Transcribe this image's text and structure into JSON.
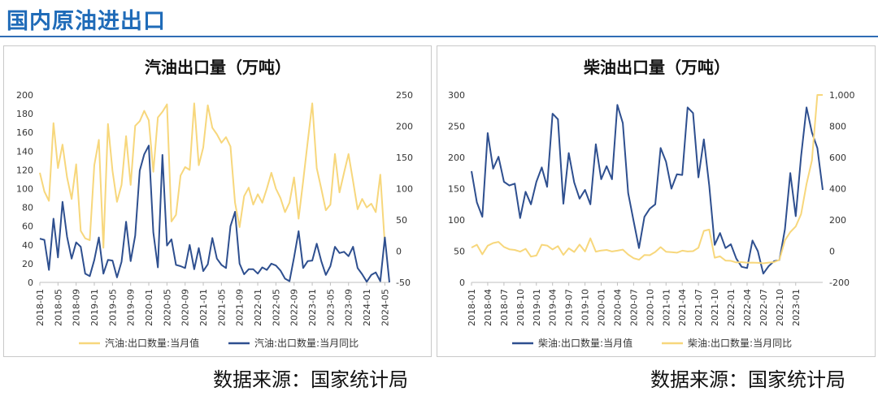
{
  "page": {
    "title": "国内原油进出口"
  },
  "sources": {
    "left": "数据来源：国家统计局",
    "right": "数据来源：国家统计局"
  },
  "colors": {
    "blue": "#2e4f8f",
    "yellow": "#f7d77c",
    "axis": "#bfbfbf",
    "text": "#333333"
  },
  "chart_data": [
    {
      "type": "line",
      "title": "汽油出口量（万吨）",
      "x_start": "2018-01",
      "x_tick_labels": [
        "2018-01",
        "2018-05",
        "2018-09",
        "2019-01",
        "2019-05",
        "2019-09",
        "2020-01",
        "2020-05",
        "2020-09",
        "2021-01",
        "2021-05",
        "2021-09",
        "2022-01",
        "2022-05",
        "2022-09",
        "2023-01",
        "2023-05",
        "2023-09",
        "2024-01",
        "2024-05"
      ],
      "left_axis": {
        "ylim": [
          0,
          200
        ],
        "ticks": [
          0,
          20,
          40,
          60,
          80,
          100,
          120,
          140,
          160,
          180,
          200
        ]
      },
      "right_axis": {
        "ylim": [
          -50,
          250
        ],
        "ticks": [
          -50,
          0,
          50,
          100,
          150,
          200,
          250
        ]
      },
      "legend": {
        "placement": "bottom"
      },
      "series": [
        {
          "name": "汽油:出口数量:当月值",
          "axis": "left",
          "color": "#f7d77c",
          "values": [
            117,
            97,
            87,
            170,
            122,
            147,
            112,
            89,
            126,
            55,
            47,
            45,
            125,
            152,
            37,
            169,
            119,
            86,
            104,
            156,
            104,
            167,
            172,
            183,
            173,
            118,
            176,
            182,
            190,
            65,
            72,
            114,
            123,
            120,
            191,
            125,
            144,
            189,
            165,
            158,
            149,
            155,
            145,
            85,
            59,
            92,
            101,
            83,
            94,
            85,
            100,
            117,
            100,
            90,
            75,
            85,
            112,
            68,
            108,
            150,
            191,
            122,
            100,
            77,
            83,
            137,
            96,
            117,
            137,
            108,
            78,
            89,
            80,
            84,
            75,
            115,
            40
          ]
        },
        {
          "name": "汽油:出口数量:当月同比",
          "axis": "right",
          "color": "#2e4f8f",
          "values": [
            20,
            18,
            -30,
            52,
            -10,
            79,
            23,
            -12,
            14,
            7,
            -36,
            -40,
            -14,
            22,
            -36,
            -14,
            -15,
            -42,
            -17,
            47,
            -16,
            25,
            129,
            155,
            169,
            30,
            -26,
            154,
            9,
            19,
            -22,
            -24,
            -27,
            10,
            -29,
            5,
            -32,
            -21,
            21,
            -12,
            -22,
            -27,
            40,
            63,
            -20,
            -37,
            -29,
            -29,
            -36,
            -26,
            -30,
            -20,
            -23,
            -31,
            -44,
            -48,
            -10,
            32,
            -27,
            -16,
            -15,
            12,
            -16,
            -38,
            -24,
            7,
            -3,
            -1,
            -8,
            7,
            -27,
            -37,
            -49,
            -38,
            -34,
            -48,
            22,
            -53
          ]
        }
      ]
    },
    {
      "type": "line",
      "title": "柴油出口量（万吨）",
      "x_start": "2018-01",
      "x_tick_labels": [
        "2018-01",
        "2018-04",
        "2018-07",
        "2018-10",
        "2019-01",
        "2019-04",
        "2019-07",
        "2019-10",
        "2020-01",
        "2020-04",
        "2020-07",
        "2020-10",
        "2021-01",
        "2021-04",
        "2021-07",
        "2021-10",
        "2022-01",
        "2022-04",
        "2022-07",
        "2022-10",
        "2023-01"
      ],
      "left_axis": {
        "ylim": [
          0,
          300
        ],
        "ticks": [
          0,
          50,
          100,
          150,
          200,
          250,
          300
        ]
      },
      "right_axis": {
        "ylim": [
          -200,
          1000
        ],
        "ticks": [
          -200,
          0,
          200,
          400,
          600,
          800,
          1000
        ],
        "tick_labels": [
          "-200",
          "0",
          "200",
          "400",
          "600",
          "800",
          "1,000"
        ]
      },
      "legend": {
        "placement": "bottom"
      },
      "series": [
        {
          "name": "柴油:出口数量:当月值",
          "axis": "left",
          "color": "#2e4f8f",
          "values": [
            178,
            128,
            105,
            239,
            182,
            201,
            161,
            155,
            158,
            103,
            145,
            125,
            161,
            184,
            153,
            270,
            261,
            126,
            207,
            160,
            134,
            148,
            125,
            221,
            165,
            186,
            165,
            284,
            255,
            143,
            98,
            55,
            105,
            118,
            125,
            215,
            193,
            150,
            173,
            172,
            280,
            271,
            168,
            229,
            155,
            60,
            79,
            55,
            61,
            38,
            25,
            23,
            67,
            50,
            14,
            26,
            34,
            36,
            85,
            175,
            106,
            202,
            280,
            240,
            215,
            148
          ]
        },
        {
          "name": "柴油:出口数量:当月同比",
          "axis": "right",
          "color": "#f7d77c",
          "values": [
            23,
            41,
            -20,
            35,
            52,
            59,
            27,
            12,
            8,
            -3,
            15,
            -35,
            -28,
            41,
            36,
            11,
            32,
            -24,
            18,
            -5,
            42,
            -2,
            82,
            -3,
            4,
            8,
            -2,
            3,
            10,
            -22,
            -45,
            -55,
            -25,
            -26,
            -5,
            26,
            -4,
            -7,
            -10,
            3,
            -2,
            0,
            22,
            130,
            138,
            -42,
            -33,
            -60,
            -62,
            -72,
            -70,
            -74,
            -73,
            -75,
            -78,
            -73,
            -70,
            -55,
            69,
            122,
            158,
            237,
            430,
            580,
            1000,
            1000
          ]
        }
      ]
    }
  ]
}
